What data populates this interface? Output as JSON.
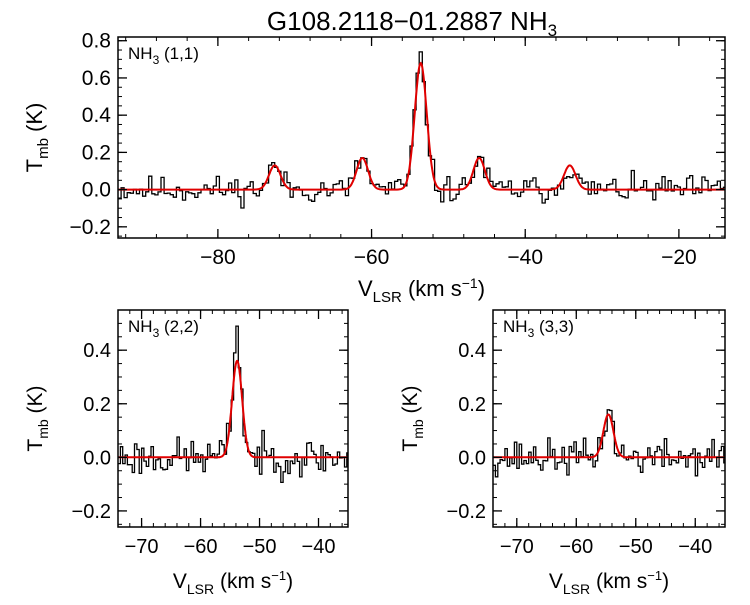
{
  "title": {
    "main": "G108.2118−01.2887 NH",
    "sub": "3"
  },
  "colors": {
    "spectrum": "#000000",
    "fit": "#e00000",
    "axes": "#000000"
  },
  "chart_data": [
    {
      "type": "line",
      "label": {
        "main": "NH",
        "sub": "3",
        "rest": " (1,1)"
      },
      "xlabel": {
        "main": "V",
        "sub": "LSR",
        "rest": " (km s",
        "sup": "−1",
        "close": ")"
      },
      "ylabel": {
        "main": "T",
        "sub": "mb",
        "rest": " (K)"
      },
      "xlim": [
        -93,
        -14
      ],
      "ylim": [
        -0.26,
        0.82
      ],
      "xticks": [
        -80,
        -60,
        -40,
        -20
      ],
      "xtick_labels": [
        "−80",
        "−60",
        "−40",
        "−20"
      ],
      "yticks": [
        -0.2,
        0.0,
        0.2,
        0.4,
        0.6,
        0.8
      ],
      "ytick_labels": [
        "−0.2",
        "0.0",
        "0.2",
        "0.4",
        "0.6",
        "0.8"
      ],
      "noise": 0.045,
      "seed": 11,
      "components": [
        {
          "center": -72.6,
          "amp": 0.13,
          "sigma": 0.75
        },
        {
          "center": -61.2,
          "amp": 0.17,
          "sigma": 0.75
        },
        {
          "center": -53.6,
          "amp": 0.68,
          "sigma": 0.78
        },
        {
          "center": -46.0,
          "amp": 0.17,
          "sigma": 0.75
        },
        {
          "center": -34.2,
          "amp": 0.13,
          "sigma": 0.75
        }
      ],
      "spikes": [
        {
          "x": -53.6,
          "y": 0.74
        },
        {
          "x": -53.2,
          "y": 0.58
        }
      ]
    },
    {
      "type": "line",
      "label": {
        "main": "NH",
        "sub": "3",
        "rest": " (2,2)"
      },
      "xlabel": {
        "main": "V",
        "sub": "LSR",
        "rest": " (km s",
        "sup": "−1",
        "close": ")"
      },
      "ylabel": {
        "main": "T",
        "sub": "mb",
        "rest": " (K)"
      },
      "xlim": [
        -74,
        -35
      ],
      "ylim": [
        -0.26,
        0.55
      ],
      "xticks": [
        -70,
        -60,
        -50,
        -40
      ],
      "xtick_labels": [
        "−70",
        "−60",
        "−50",
        "−40"
      ],
      "yticks": [
        -0.2,
        0.0,
        0.2,
        0.4
      ],
      "ytick_labels": [
        "−0.2",
        "0.0",
        "0.2",
        "0.4"
      ],
      "noise": 0.045,
      "seed": 23,
      "components": [
        {
          "center": -53.8,
          "amp": 0.36,
          "sigma": 0.85
        }
      ],
      "spikes": [
        {
          "x": -53.6,
          "y": 0.49
        },
        {
          "x": -54.0,
          "y": 0.39
        }
      ]
    },
    {
      "type": "line",
      "label": {
        "main": "NH",
        "sub": "3",
        "rest": " (3,3)"
      },
      "xlabel": {
        "main": "V",
        "sub": "LSR",
        "rest": " (km s",
        "sup": "−1",
        "close": ")"
      },
      "ylabel": {
        "main": "T",
        "sub": "mb",
        "rest": " (K)"
      },
      "xlim": [
        -74,
        -35
      ],
      "ylim": [
        -0.26,
        0.55
      ],
      "xticks": [
        -70,
        -60,
        -50,
        -40
      ],
      "xtick_labels": [
        "−70",
        "−60",
        "−50",
        "−40"
      ],
      "yticks": [
        -0.2,
        0.0,
        0.2,
        0.4
      ],
      "ytick_labels": [
        "−0.2",
        "0.0",
        "0.2",
        "0.4"
      ],
      "noise": 0.04,
      "seed": 37,
      "components": [
        {
          "center": -54.6,
          "amp": 0.16,
          "sigma": 0.85
        }
      ],
      "spikes": [
        {
          "x": -54.2,
          "y": 0.175
        }
      ]
    }
  ]
}
